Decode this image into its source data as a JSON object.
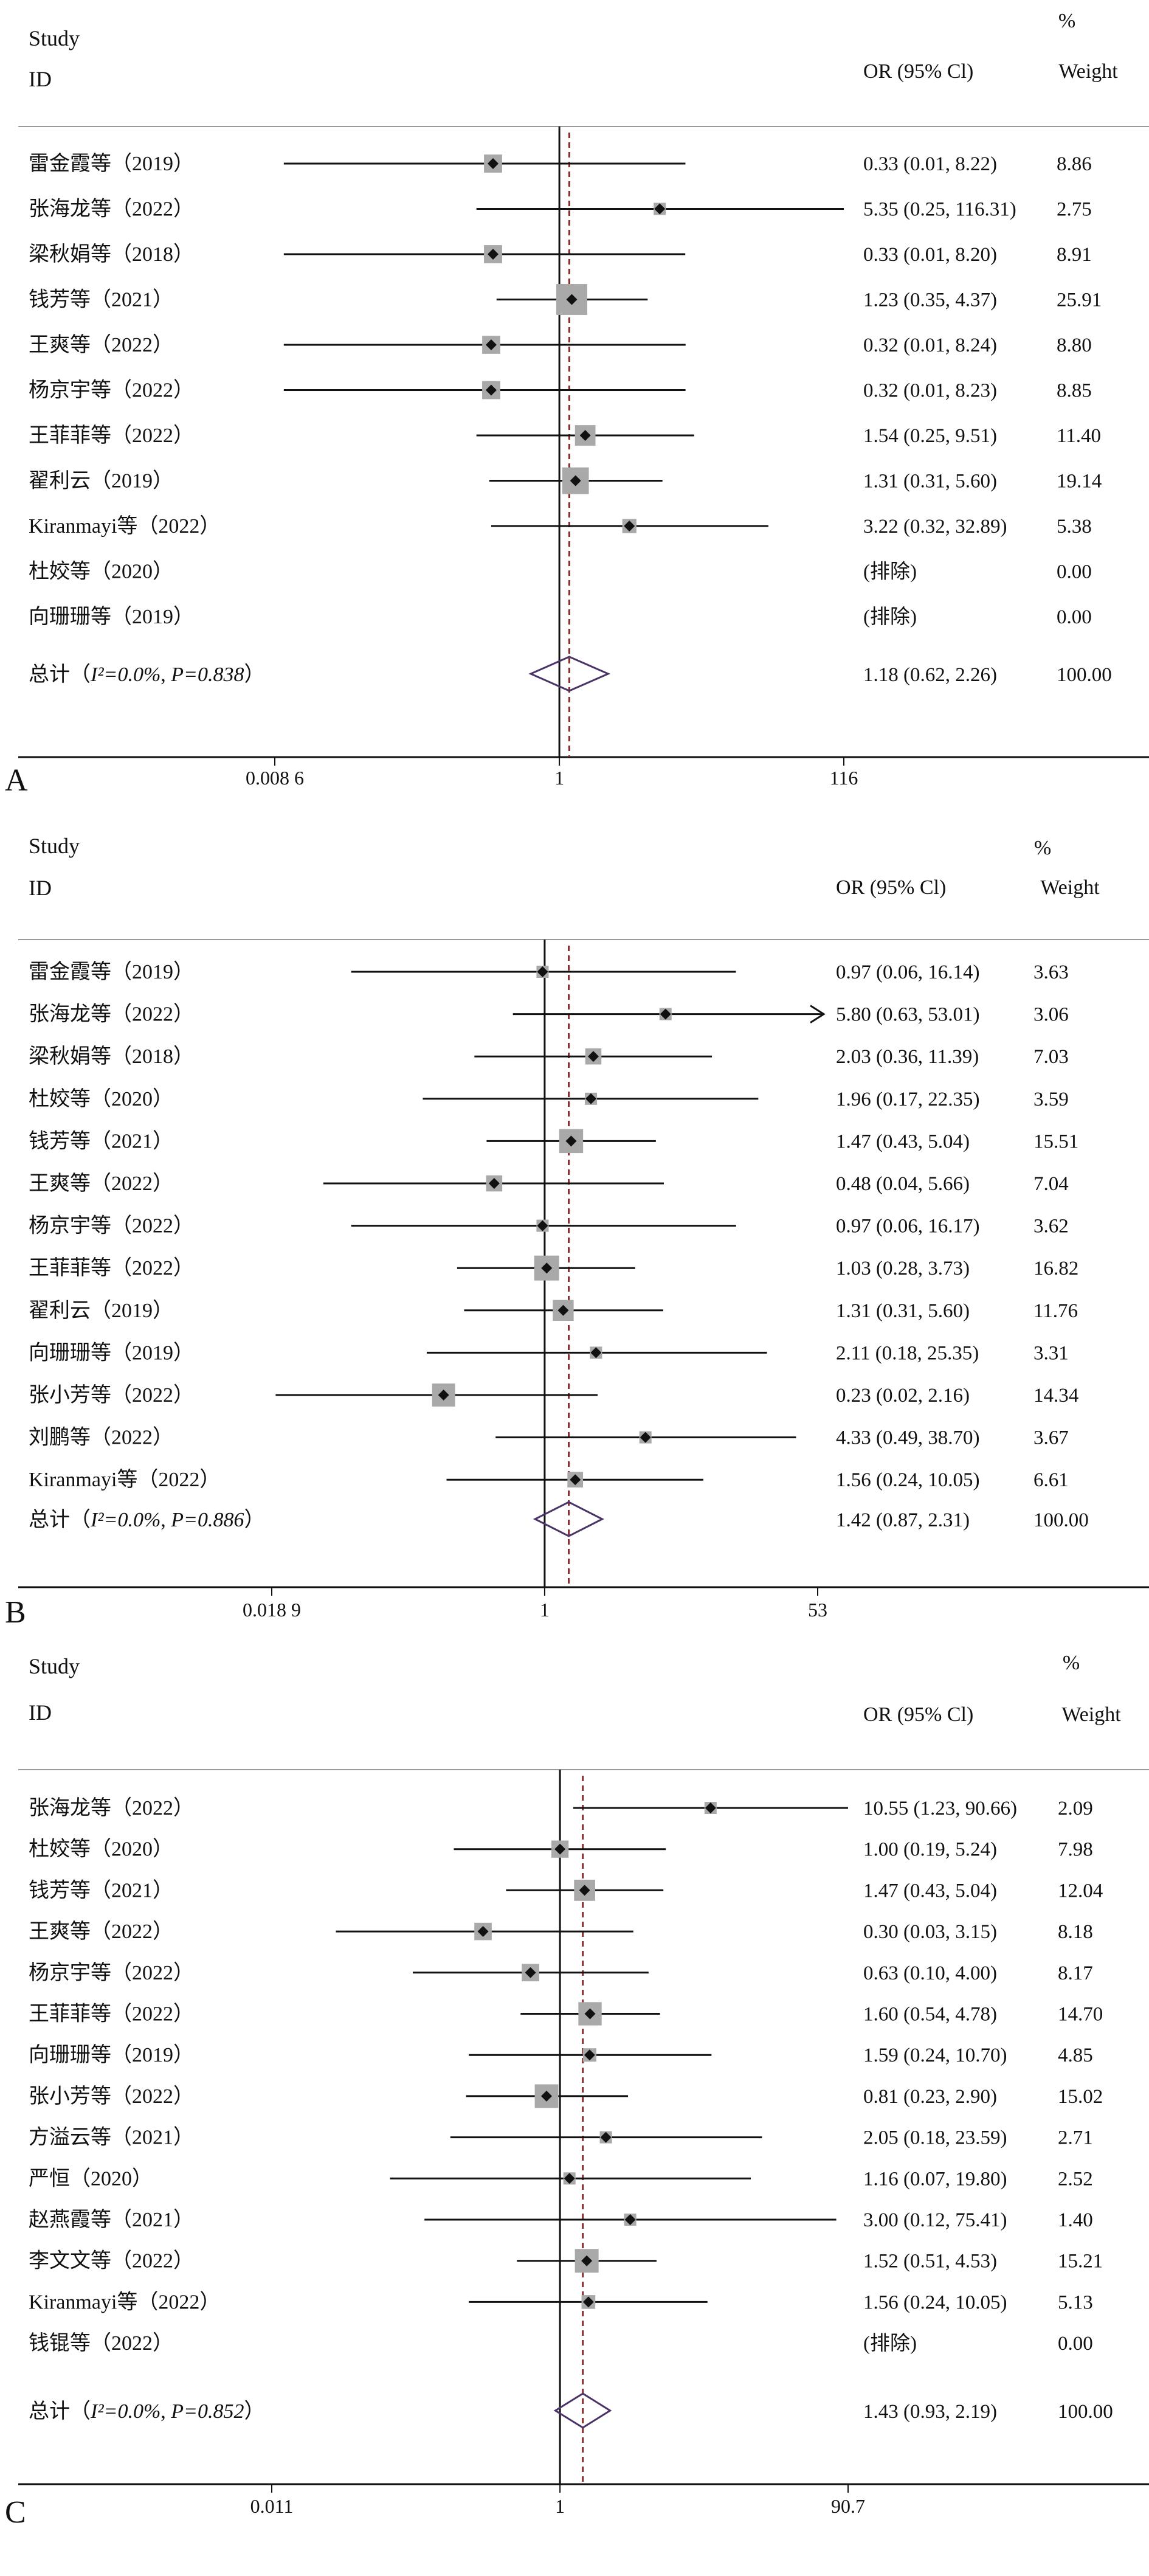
{
  "chart_data": [
    {
      "type": "forest",
      "panel_label": "A",
      "header": {
        "study": "Study",
        "id": "ID",
        "or_ci": "OR (95% Cl)",
        "pct": "%",
        "weight": "Weight"
      },
      "x_scale": "log",
      "xlim": [
        0.0086,
        116
      ],
      "xticks": [
        {
          "value": 0.0086,
          "label": "0.008 6"
        },
        {
          "value": 1,
          "label": "1"
        },
        {
          "value": 116,
          "label": "116"
        }
      ],
      "overall_line": 1.18,
      "studies": [
        {
          "id": "雷金霞等（2019）",
          "or": 0.33,
          "lo": 0.01,
          "hi": 8.22,
          "or_text": "0.33 (0.01, 8.22)",
          "weight": "8.86",
          "w": 8.86
        },
        {
          "id": "张海龙等（2022）",
          "or": 5.35,
          "lo": 0.25,
          "hi": 116.31,
          "or_text": "5.35 (0.25, 116.31)",
          "weight": "2.75",
          "w": 2.75
        },
        {
          "id": "梁秋娟等（2018）",
          "or": 0.33,
          "lo": 0.01,
          "hi": 8.2,
          "or_text": "0.33 (0.01, 8.20)",
          "weight": "8.91",
          "w": 8.91
        },
        {
          "id": "钱芳等（2021）",
          "or": 1.23,
          "lo": 0.35,
          "hi": 4.37,
          "or_text": "1.23 (0.35, 4.37)",
          "weight": "25.91",
          "w": 25.91
        },
        {
          "id": "王爽等（2022）",
          "or": 0.32,
          "lo": 0.01,
          "hi": 8.24,
          "or_text": "0.32 (0.01, 8.24)",
          "weight": "8.80",
          "w": 8.8
        },
        {
          "id": "杨京宇等（2022）",
          "or": 0.32,
          "lo": 0.01,
          "hi": 8.23,
          "or_text": "0.32 (0.01, 8.23)",
          "weight": "8.85",
          "w": 8.85
        },
        {
          "id": "王菲菲等（2022）",
          "or": 1.54,
          "lo": 0.25,
          "hi": 9.51,
          "or_text": "1.54 (0.25, 9.51)",
          "weight": "11.40",
          "w": 11.4
        },
        {
          "id": "翟利云（2019）",
          "or": 1.31,
          "lo": 0.31,
          "hi": 5.6,
          "or_text": "1.31 (0.31, 5.60)",
          "weight": "19.14",
          "w": 19.14
        },
        {
          "id": "Kiranmayi等（2022）",
          "or": 3.22,
          "lo": 0.32,
          "hi": 32.89,
          "or_text": "3.22 (0.32, 32.89)",
          "weight": "5.38",
          "w": 5.38
        },
        {
          "id": "杜姣等（2020）",
          "or": null,
          "lo": null,
          "hi": null,
          "or_text": "(排除)",
          "weight": "0.00",
          "w": 0
        },
        {
          "id": "向珊珊等（2019）",
          "or": null,
          "lo": null,
          "hi": null,
          "or_text": "(排除)",
          "weight": "0.00",
          "w": 0
        }
      ],
      "overall": {
        "prefix": "总计（",
        "I2": "I²=0.0%",
        "sep": ", ",
        "P": "P=0.838",
        "suffix": "）",
        "or": 1.18,
        "lo": 0.62,
        "hi": 2.26,
        "or_text": "1.18 (0.62, 2.26)",
        "weight": "100.00"
      }
    },
    {
      "type": "forest",
      "panel_label": "B",
      "header": {
        "study": "Study",
        "id": "ID",
        "or_ci": "OR (95% Cl)",
        "pct": "%",
        "weight": "Weight"
      },
      "x_scale": "log",
      "xlim": [
        0.0189,
        53
      ],
      "xticks": [
        {
          "value": 0.0189,
          "label": "0.018 9"
        },
        {
          "value": 1,
          "label": "1"
        },
        {
          "value": 53,
          "label": "53"
        }
      ],
      "overall_line": 1.42,
      "studies": [
        {
          "id": "雷金霞等（2019）",
          "or": 0.97,
          "lo": 0.06,
          "hi": 16.14,
          "or_text": "0.97 (0.06, 16.14)",
          "weight": "3.63",
          "w": 3.63
        },
        {
          "id": "张海龙等（2022）",
          "or": 5.8,
          "lo": 0.63,
          "hi": 53.01,
          "or_text": "5.80 (0.63, 53.01)",
          "weight": "3.06",
          "w": 3.06,
          "arrow": true
        },
        {
          "id": "梁秋娟等（2018）",
          "or": 2.03,
          "lo": 0.36,
          "hi": 11.39,
          "or_text": "2.03 (0.36, 11.39)",
          "weight": "7.03",
          "w": 7.03
        },
        {
          "id": "杜姣等（2020）",
          "or": 1.96,
          "lo": 0.17,
          "hi": 22.35,
          "or_text": "1.96 (0.17, 22.35)",
          "weight": "3.59",
          "w": 3.59
        },
        {
          "id": "钱芳等（2021）",
          "or": 1.47,
          "lo": 0.43,
          "hi": 5.04,
          "or_text": "1.47 (0.43, 5.04)",
          "weight": "15.51",
          "w": 15.51
        },
        {
          "id": "王爽等（2022）",
          "or": 0.48,
          "lo": 0.04,
          "hi": 5.66,
          "or_text": "0.48 (0.04, 5.66)",
          "weight": "7.04",
          "w": 7.04
        },
        {
          "id": "杨京宇等（2022）",
          "or": 0.97,
          "lo": 0.06,
          "hi": 16.17,
          "or_text": "0.97 (0.06, 16.17)",
          "weight": "3.62",
          "w": 3.62
        },
        {
          "id": "王菲菲等（2022）",
          "or": 1.03,
          "lo": 0.28,
          "hi": 3.73,
          "or_text": "1.03 (0.28, 3.73)",
          "weight": "16.82",
          "w": 16.82
        },
        {
          "id": "翟利云（2019）",
          "or": 1.31,
          "lo": 0.31,
          "hi": 5.6,
          "or_text": "1.31 (0.31, 5.60)",
          "weight": "11.76",
          "w": 11.76
        },
        {
          "id": "向珊珊等（2019）",
          "or": 2.11,
          "lo": 0.18,
          "hi": 25.35,
          "or_text": "2.11 (0.18, 25.35)",
          "weight": "3.31",
          "w": 3.31
        },
        {
          "id": "张小芳等（2022）",
          "or": 0.23,
          "lo": 0.02,
          "hi": 2.16,
          "or_text": "0.23 (0.02, 2.16)",
          "weight": "14.34",
          "w": 14.34
        },
        {
          "id": "刘鹏等（2022）",
          "or": 4.33,
          "lo": 0.49,
          "hi": 38.7,
          "or_text": "4.33 (0.49, 38.70)",
          "weight": "3.67",
          "w": 3.67
        },
        {
          "id": "Kiranmayi等（2022）",
          "or": 1.56,
          "lo": 0.24,
          "hi": 10.05,
          "or_text": "1.56 (0.24, 10.05)",
          "weight": "6.61",
          "w": 6.61
        }
      ],
      "overall": {
        "prefix": "总计（",
        "I2": "I²=0.0%",
        "sep": ", ",
        "P": "P=0.886",
        "suffix": "）",
        "or": 1.42,
        "lo": 0.87,
        "hi": 2.31,
        "or_text": "1.42 (0.87, 2.31)",
        "weight": "100.00"
      }
    },
    {
      "type": "forest",
      "panel_label": "C",
      "header": {
        "study": "Study",
        "id": "ID",
        "or_ci": "OR (95% Cl)",
        "pct": "%",
        "weight": "Weight"
      },
      "x_scale": "log",
      "xlim": [
        0.011,
        90.7
      ],
      "xticks": [
        {
          "value": 0.011,
          "label": "0.011"
        },
        {
          "value": 1,
          "label": "1"
        },
        {
          "value": 90.7,
          "label": "90.7"
        }
      ],
      "overall_line": 1.43,
      "studies": [
        {
          "id": "张海龙等（2022）",
          "or": 10.55,
          "lo": 1.23,
          "hi": 90.66,
          "or_text": "10.55 (1.23, 90.66)",
          "weight": "2.09",
          "w": 2.09
        },
        {
          "id": "杜姣等（2020）",
          "or": 1.0,
          "lo": 0.19,
          "hi": 5.24,
          "or_text": "1.00 (0.19, 5.24)",
          "weight": "7.98",
          "w": 7.98
        },
        {
          "id": "钱芳等（2021）",
          "or": 1.47,
          "lo": 0.43,
          "hi": 5.04,
          "or_text": "1.47 (0.43, 5.04)",
          "weight": "12.04",
          "w": 12.04
        },
        {
          "id": "王爽等（2022）",
          "or": 0.3,
          "lo": 0.03,
          "hi": 3.15,
          "or_text": "0.30 (0.03, 3.15)",
          "weight": "8.18",
          "w": 8.18
        },
        {
          "id": "杨京宇等（2022）",
          "or": 0.63,
          "lo": 0.1,
          "hi": 4.0,
          "or_text": "0.63 (0.10, 4.00)",
          "weight": "8.17",
          "w": 8.17
        },
        {
          "id": "王菲菲等（2022）",
          "or": 1.6,
          "lo": 0.54,
          "hi": 4.78,
          "or_text": "1.60 (0.54, 4.78)",
          "weight": "14.70",
          "w": 14.7
        },
        {
          "id": "向珊珊等（2019）",
          "or": 1.59,
          "lo": 0.24,
          "hi": 10.7,
          "or_text": "1.59 (0.24, 10.70)",
          "weight": "4.85",
          "w": 4.85
        },
        {
          "id": "张小芳等（2022）",
          "or": 0.81,
          "lo": 0.23,
          "hi": 2.9,
          "or_text": "0.81 (0.23, 2.90)",
          "weight": "15.02",
          "w": 15.02
        },
        {
          "id": "方溢云等（2021）",
          "or": 2.05,
          "lo": 0.18,
          "hi": 23.59,
          "or_text": "2.05 (0.18, 23.59)",
          "weight": "2.71",
          "w": 2.71
        },
        {
          "id": "严恒（2020）",
          "or": 1.16,
          "lo": 0.07,
          "hi": 19.8,
          "or_text": "1.16 (0.07, 19.80)",
          "weight": "2.52",
          "w": 2.52
        },
        {
          "id": "赵燕霞等（2021）",
          "or": 3.0,
          "lo": 0.12,
          "hi": 75.41,
          "or_text": "3.00 (0.12, 75.41)",
          "weight": "1.40",
          "w": 1.4
        },
        {
          "id": "李文文等（2022）",
          "or": 1.52,
          "lo": 0.51,
          "hi": 4.53,
          "or_text": "1.52 (0.51, 4.53)",
          "weight": "15.21",
          "w": 15.21
        },
        {
          "id": "Kiranmayi等（2022）",
          "or": 1.56,
          "lo": 0.24,
          "hi": 10.05,
          "or_text": "1.56 (0.24, 10.05)",
          "weight": "5.13",
          "w": 5.13
        },
        {
          "id": "钱锟等（2022）",
          "or": null,
          "lo": null,
          "hi": null,
          "or_text": "(排除)",
          "weight": "0.00",
          "w": 0
        }
      ],
      "overall": {
        "prefix": "总计（",
        "I2": "I²=0.0%",
        "sep": ", ",
        "P": "P=0.852",
        "suffix": "）",
        "or": 1.43,
        "lo": 0.93,
        "hi": 2.19,
        "or_text": "1.43 (0.93, 2.19)",
        "weight": "100.00"
      }
    }
  ],
  "colors": {
    "ink": "#111111",
    "box": "#a9a9a9",
    "ref_line": "#8b2a2a",
    "diamond": "#4a3366",
    "rule": "#9a9a9a"
  }
}
